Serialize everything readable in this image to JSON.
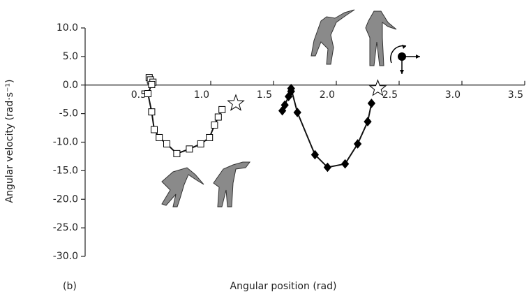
{
  "chart_data": {
    "type": "line",
    "panel_label": "(b)",
    "xlabel": "Angular position (rad)",
    "ylabel": "Angular velocity (rad·s⁻¹)",
    "xlim": [
      0,
      3.5
    ],
    "ylim": [
      -30,
      10
    ],
    "xticks": [
      0.5,
      {
        "value": 1,
        "label": "1.0"
      },
      1.5,
      {
        "value": 2,
        "label": "2.0"
      },
      2.5,
      {
        "value": 3,
        "label": "3.0"
      },
      3.5
    ],
    "yticks": [
      {
        "value": 10,
        "label": "10.0"
      },
      {
        "value": 5,
        "label": "5.0"
      },
      {
        "value": 0,
        "label": "0.0"
      },
      {
        "value": -5,
        "label": "-5.0"
      },
      {
        "value": -10,
        "label": "-10.0"
      },
      {
        "value": -15,
        "label": "-15.0"
      },
      {
        "value": -20,
        "label": "-20.0"
      },
      {
        "value": -25,
        "label": "-25.0"
      },
      {
        "value": -30,
        "label": "-30.0"
      }
    ],
    "series": [
      {
        "color": "#ffffff",
        "marker": "square",
        "line": true,
        "x": [
          0.51,
          0.52,
          0.54,
          0.53,
          0.5,
          0.53,
          0.55,
          0.59,
          0.65,
          0.73,
          0.83,
          0.92,
          0.99,
          1.03,
          1.06,
          1.09
        ],
        "values": [
          1.3,
          0.9,
          0.5,
          0.1,
          -1.5,
          -4.7,
          -7.8,
          -9.2,
          -10.3,
          -12.0,
          -11.2,
          -10.3,
          -9.2,
          -7.0,
          -5.6,
          -4.3
        ]
      },
      {
        "color": "#000000",
        "marker": "diamond",
        "line": true,
        "x": [
          1.57,
          1.59,
          1.62,
          1.64,
          1.64,
          1.69,
          1.83,
          1.93,
          2.07,
          2.17,
          2.25,
          2.28
        ],
        "values": [
          -4.5,
          -3.5,
          -2.0,
          -1.1,
          -0.6,
          -4.8,
          -12.2,
          -14.4,
          -13.8,
          -10.3,
          -6.4,
          -3.2
        ]
      },
      {
        "color": "#ffffff",
        "marker": "star",
        "line": false,
        "x": [
          1.2,
          2.33
        ],
        "values": [
          -3.2,
          -0.6
        ]
      }
    ]
  }
}
